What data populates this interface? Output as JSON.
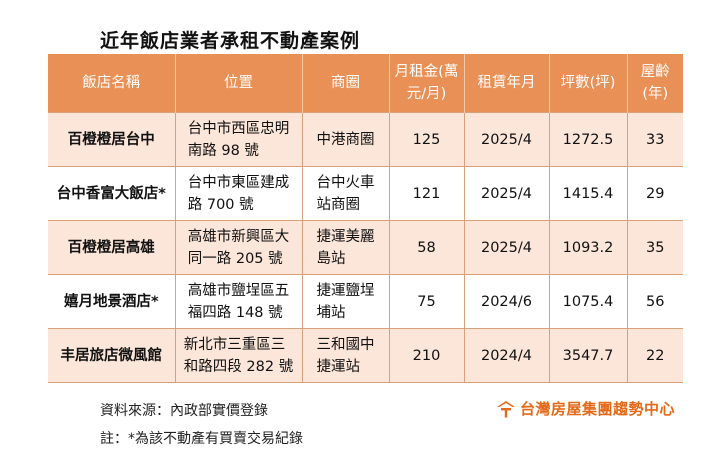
{
  "title": "近年飯店業者承租不動產案例",
  "table": {
    "headers": [
      "飯店名稱",
      "位置",
      "商圈",
      "月租金(萬元/月)",
      "租賃年月",
      "坪數(坪)",
      "屋齡(年)"
    ],
    "header_lines": {
      "rent": [
        "月租金(萬",
        "元/月)"
      ],
      "age": [
        "屋齡",
        "(年)"
      ]
    },
    "rows": [
      {
        "name": "百橙橙居台中",
        "location": "台中市西區忠明南路 98 號",
        "loc1": "台中市西區忠明",
        "loc2": "南路 98 號",
        "district": "中港商圈",
        "dist1": "中港商圈",
        "dist2": "",
        "rent": "125",
        "date": "2025/4",
        "area": "1272.5",
        "age": "33"
      },
      {
        "name": "台中香富大飯店*",
        "location": "台中市東區建成路 700 號",
        "loc1": "台中市東區建成",
        "loc2": "路 700 號",
        "district": "台中火車站商圈",
        "dist1": "台中火車",
        "dist2": "站商圈",
        "rent": "121",
        "date": "2025/4",
        "area": "1415.4",
        "age": "29"
      },
      {
        "name": "百橙橙居高雄",
        "location": "高雄市新興區大同一路 205 號",
        "loc1": "高雄市新興區大",
        "loc2": "同一路 205 號",
        "district": "捷運美麗島站",
        "dist1": "捷運美麗",
        "dist2": "島站",
        "rent": "58",
        "date": "2025/4",
        "area": "1093.2",
        "age": "35"
      },
      {
        "name": "嬉月地景酒店*",
        "location": "高雄市鹽埕區五福四路 148 號",
        "loc1": "高雄市鹽埕區五",
        "loc2": "福四路 148 號",
        "district": "捷運鹽埕埔站",
        "dist1": "捷運鹽埕",
        "dist2": "埔站",
        "rent": "75",
        "date": "2024/6",
        "area": "1075.4",
        "age": "56"
      },
      {
        "name": "丰居旅店微風館",
        "location": "新北市三重區三和路四段 282 號",
        "loc1": "新北市三重區三",
        "loc2": "和路四段 282 號",
        "district": "三和國中捷運站",
        "dist1": "三和國中",
        "dist2": "捷運站",
        "rent": "210",
        "date": "2024/4",
        "area": "3547.7",
        "age": "22"
      }
    ]
  },
  "footer": {
    "source": "資料來源：內政部實價登錄",
    "note": "註：*為該不動產有買賣交易紀錄"
  },
  "logo": {
    "text": "台灣房屋集團趨勢中心",
    "icon": "house-roof-icon",
    "color": "#e46a1a"
  },
  "colors": {
    "header_bg": "#e89055",
    "odd_row_bg": "#fbe6d9",
    "even_row_bg": "#ffffff",
    "border": "#d9a07c"
  }
}
